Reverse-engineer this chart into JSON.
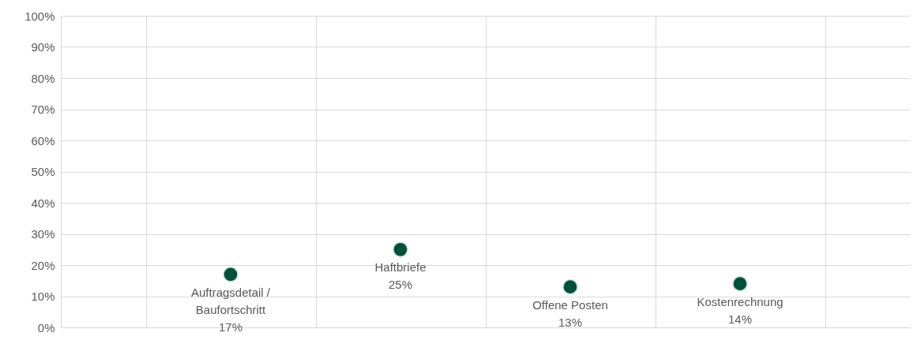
{
  "chart_data": {
    "type": "scatter",
    "categories": [
      null,
      null,
      null,
      null
    ],
    "series": [
      {
        "color": "#00503c",
        "values": [
          17,
          25,
          13,
          14
        ]
      }
    ],
    "value_labels": [
      "17%",
      "25%",
      "13%",
      "14%"
    ],
    "annotations": [
      "Auftragsdetail / Baufortschritt",
      "Haftbriefe",
      "Offene Posten",
      "Kostenrechnung"
    ],
    "ylim": [
      0,
      100
    ],
    "yticks": [
      {
        "value": 0,
        "label": "0%"
      },
      {
        "value": 10,
        "label": "10%"
      },
      {
        "value": 20,
        "label": "20%"
      },
      {
        "value": 30,
        "label": "30%"
      },
      {
        "value": 40,
        "label": "40%"
      },
      {
        "value": 50,
        "label": "50%"
      },
      {
        "value": 60,
        "label": "60%"
      },
      {
        "value": 70,
        "label": "70%"
      },
      {
        "value": 80,
        "label": "80%"
      },
      {
        "value": 90,
        "label": "90%"
      },
      {
        "value": 100,
        "label": "100%"
      }
    ],
    "tick_labels": "y",
    "grid": true,
    "marker": "circle"
  }
}
